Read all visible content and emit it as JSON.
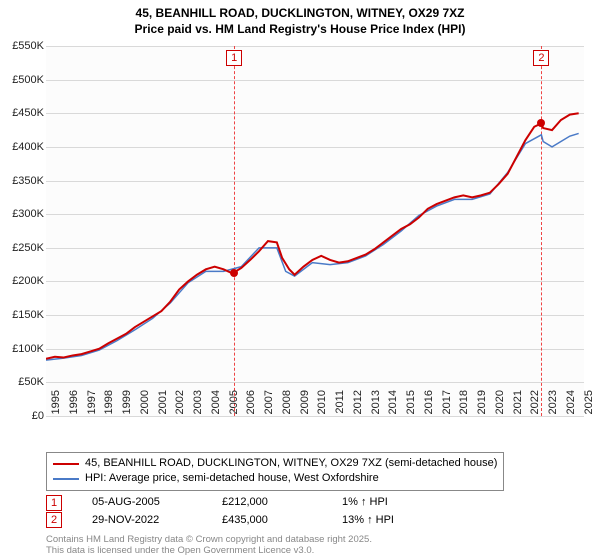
{
  "title_line1": "45, BEANHILL ROAD, DUCKLINGTON, WITNEY, OX29 7XZ",
  "title_line2": "Price paid vs. HM Land Registry's House Price Index (HPI)",
  "chart": {
    "type": "line",
    "background_color": "#fcfcfc",
    "grid_color": "#d9d9d9",
    "ylim": [
      0,
      550
    ],
    "ytick_step": 50,
    "y_labels": [
      "£0",
      "£50K",
      "£100K",
      "£150K",
      "£200K",
      "£250K",
      "£300K",
      "£350K",
      "£400K",
      "£450K",
      "£500K",
      "£550K"
    ],
    "x_years": [
      1995,
      1996,
      1997,
      1998,
      1999,
      2000,
      2001,
      2002,
      2003,
      2004,
      2005,
      2006,
      2007,
      2008,
      2009,
      2010,
      2011,
      2012,
      2013,
      2014,
      2015,
      2016,
      2017,
      2018,
      2019,
      2020,
      2021,
      2022,
      2023,
      2024,
      2025
    ],
    "series": [
      {
        "name": "price_paid",
        "color": "#cc0000",
        "width": 2,
        "data": [
          [
            1995,
            85
          ],
          [
            1995.5,
            88
          ],
          [
            1996,
            87
          ],
          [
            1996.5,
            90
          ],
          [
            1997,
            92
          ],
          [
            1997.5,
            96
          ],
          [
            1998,
            100
          ],
          [
            1998.5,
            108
          ],
          [
            1999,
            115
          ],
          [
            1999.5,
            122
          ],
          [
            2000,
            132
          ],
          [
            2000.5,
            140
          ],
          [
            2001,
            148
          ],
          [
            2001.5,
            156
          ],
          [
            2002,
            170
          ],
          [
            2002.5,
            188
          ],
          [
            2003,
            200
          ],
          [
            2003.5,
            210
          ],
          [
            2004,
            218
          ],
          [
            2004.5,
            222
          ],
          [
            2005,
            218
          ],
          [
            2005.5,
            212
          ],
          [
            2006,
            220
          ],
          [
            2006.5,
            232
          ],
          [
            2007,
            245
          ],
          [
            2007.5,
            260
          ],
          [
            2008,
            258
          ],
          [
            2008.3,
            235
          ],
          [
            2008.7,
            218
          ],
          [
            2009,
            210
          ],
          [
            2009.5,
            222
          ],
          [
            2010,
            232
          ],
          [
            2010.5,
            238
          ],
          [
            2011,
            232
          ],
          [
            2011.5,
            228
          ],
          [
            2012,
            230
          ],
          [
            2012.5,
            235
          ],
          [
            2013,
            240
          ],
          [
            2013.5,
            248
          ],
          [
            2014,
            258
          ],
          [
            2014.5,
            268
          ],
          [
            2015,
            278
          ],
          [
            2015.5,
            285
          ],
          [
            2016,
            295
          ],
          [
            2016.5,
            308
          ],
          [
            2017,
            315
          ],
          [
            2017.5,
            320
          ],
          [
            2018,
            325
          ],
          [
            2018.5,
            328
          ],
          [
            2019,
            325
          ],
          [
            2019.5,
            328
          ],
          [
            2020,
            332
          ],
          [
            2020.5,
            345
          ],
          [
            2021,
            360
          ],
          [
            2021.5,
            385
          ],
          [
            2022,
            410
          ],
          [
            2022.5,
            430
          ],
          [
            2022.9,
            435
          ],
          [
            2023,
            428
          ],
          [
            2023.5,
            425
          ],
          [
            2024,
            440
          ],
          [
            2024.5,
            448
          ],
          [
            2025,
            450
          ]
        ]
      },
      {
        "name": "hpi",
        "color": "#4a7ac7",
        "width": 1.5,
        "data": [
          [
            1995,
            83
          ],
          [
            1996,
            86
          ],
          [
            1997,
            90
          ],
          [
            1998,
            98
          ],
          [
            1999,
            112
          ],
          [
            2000,
            128
          ],
          [
            2001,
            145
          ],
          [
            2002,
            168
          ],
          [
            2003,
            198
          ],
          [
            2004,
            215
          ],
          [
            2005,
            215
          ],
          [
            2006,
            222
          ],
          [
            2007,
            250
          ],
          [
            2008,
            250
          ],
          [
            2008.5,
            215
          ],
          [
            2009,
            208
          ],
          [
            2010,
            228
          ],
          [
            2011,
            225
          ],
          [
            2012,
            228
          ],
          [
            2013,
            238
          ],
          [
            2014,
            255
          ],
          [
            2015,
            275
          ],
          [
            2016,
            298
          ],
          [
            2017,
            312
          ],
          [
            2018,
            322
          ],
          [
            2019,
            322
          ],
          [
            2020,
            330
          ],
          [
            2021,
            362
          ],
          [
            2022,
            405
          ],
          [
            2022.9,
            418
          ],
          [
            2023,
            408
          ],
          [
            2023.5,
            400
          ],
          [
            2024,
            408
          ],
          [
            2024.5,
            416
          ],
          [
            2025,
            420
          ]
        ]
      }
    ],
    "markers": [
      {
        "n": 1,
        "x": 2005.6,
        "y": 212,
        "date": "05-AUG-2005",
        "price": "£212,000",
        "pct": "1% ↑ HPI"
      },
      {
        "n": 2,
        "x": 2022.9,
        "y": 435,
        "date": "29-NOV-2022",
        "price": "£435,000",
        "pct": "13% ↑ HPI"
      }
    ]
  },
  "legend": {
    "series1": {
      "color": "#cc0000",
      "label": "45, BEANHILL ROAD, DUCKLINGTON, WITNEY, OX29 7XZ (semi-detached house)"
    },
    "series2": {
      "color": "#4a7ac7",
      "label": "HPI: Average price, semi-detached house, West Oxfordshire"
    }
  },
  "attribution_line1": "Contains HM Land Registry data © Crown copyright and database right 2025.",
  "attribution_line2": "This data is licensed under the Open Government Licence v3.0."
}
